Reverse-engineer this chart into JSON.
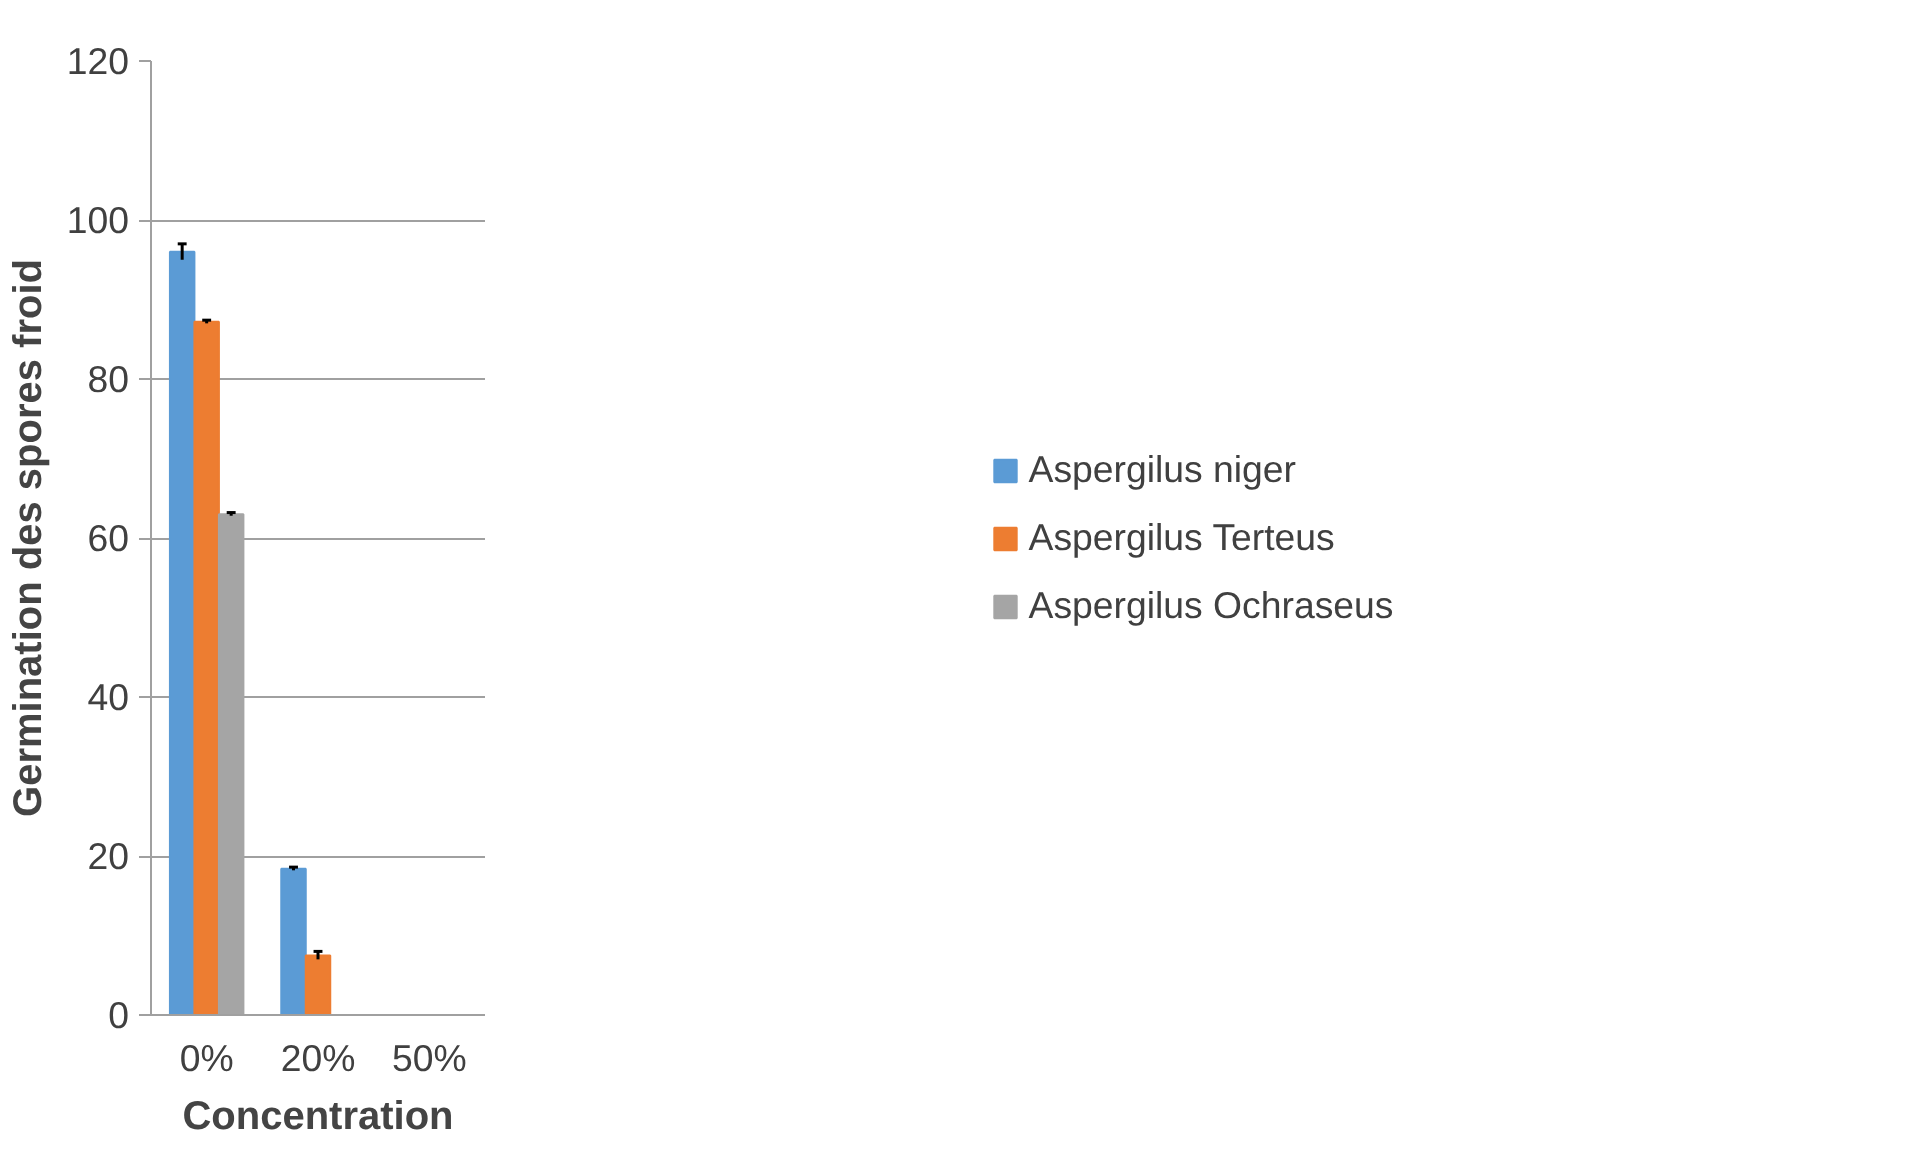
{
  "chart_data": {
    "type": "bar",
    "xlabel": "Concentration",
    "ylabel": "Germination des spores froid",
    "categories": [
      "0%",
      "20%",
      "50%"
    ],
    "series": [
      {
        "name": "Aspergilus niger",
        "color": "#5b9bd5",
        "values": [
          96,
          18.4,
          0
        ],
        "errors": [
          1,
          0.2,
          null
        ]
      },
      {
        "name": "Aspergilus Terteus",
        "color": "#ed7d31",
        "values": [
          87.2,
          7.5,
          0
        ],
        "errors": [
          0.2,
          0.5,
          null
        ]
      },
      {
        "name": "Aspergilus Ochraseus",
        "color": "#a5a5a5",
        "values": [
          63,
          0,
          0
        ],
        "errors": [
          0.2,
          null,
          null
        ]
      }
    ],
    "ylim": [
      0,
      120
    ],
    "yticks": [
      0,
      20,
      40,
      60,
      80,
      100,
      120
    ],
    "grid": "y",
    "legend": "right"
  }
}
